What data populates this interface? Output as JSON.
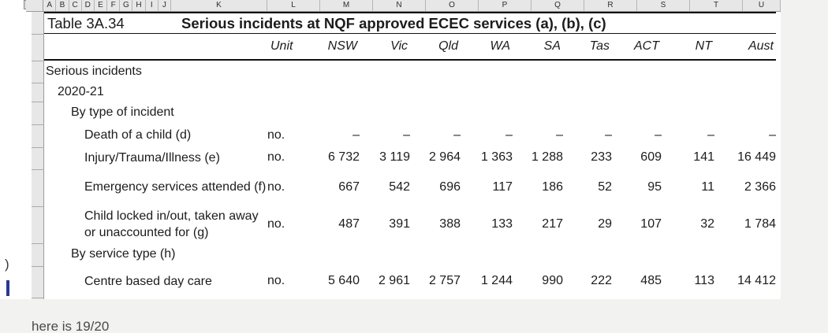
{
  "page": {
    "bottom_caption": "here is 19/20"
  },
  "spreadsheet": {
    "column_letters_narrow": [
      "A",
      "B",
      "C",
      "D",
      "E",
      "F",
      "G",
      "H",
      "I",
      "J"
    ],
    "column_letters_wide": [
      "K",
      "L",
      "M",
      "N",
      "O",
      "P",
      "Q",
      "R",
      "S",
      "T",
      "U"
    ],
    "left_fragments": {
      "paren": ")"
    }
  },
  "table": {
    "label": "Table 3A.34",
    "title": "Serious incidents at NQF approved ECEC services (a), (b), (c)",
    "columns": [
      "Unit",
      "NSW",
      "Vic",
      "Qld",
      "WA",
      "SA",
      "Tas",
      "ACT",
      "NT",
      "Aust"
    ],
    "rows": [
      {
        "label": "Serious incidents",
        "indent": 0,
        "unit": "",
        "values": []
      },
      {
        "label": "2020-21",
        "indent": 1,
        "unit": "",
        "values": []
      },
      {
        "label": "By type of incident",
        "indent": 2,
        "unit": "",
        "values": []
      },
      {
        "label": "Death of a child (d)",
        "indent": 3,
        "unit": "no.",
        "values": [
          "–",
          "–",
          "–",
          "–",
          "–",
          "–",
          "–",
          "–",
          "–"
        ]
      },
      {
        "label": "Injury/Trauma/Illness (e)",
        "indent": 3,
        "unit": "no.",
        "values": [
          "6 732",
          "3 119",
          "2 964",
          "1 363",
          "1 288",
          "233",
          "609",
          "141",
          "16 449"
        ]
      },
      {
        "label": "Emergency services attended (f)",
        "indent": 3,
        "unit": "no.",
        "values": [
          "667",
          "542",
          "696",
          "117",
          "186",
          "52",
          "95",
          "11",
          "2 366"
        ]
      },
      {
        "label": "Child locked in/out, taken away or unaccounted for (g)",
        "indent": 3,
        "unit": "no.",
        "values": [
          "487",
          "391",
          "388",
          "133",
          "217",
          "29",
          "107",
          "32",
          "1 784"
        ]
      },
      {
        "label": "By service type (h)",
        "indent": 2,
        "unit": "",
        "values": []
      },
      {
        "label": "Centre based day care",
        "indent": 3,
        "unit": "no.",
        "values": [
          "5 640",
          "2 961",
          "2 757",
          "1 244",
          "990",
          "222",
          "485",
          "113",
          "14 412"
        ]
      }
    ]
  }
}
